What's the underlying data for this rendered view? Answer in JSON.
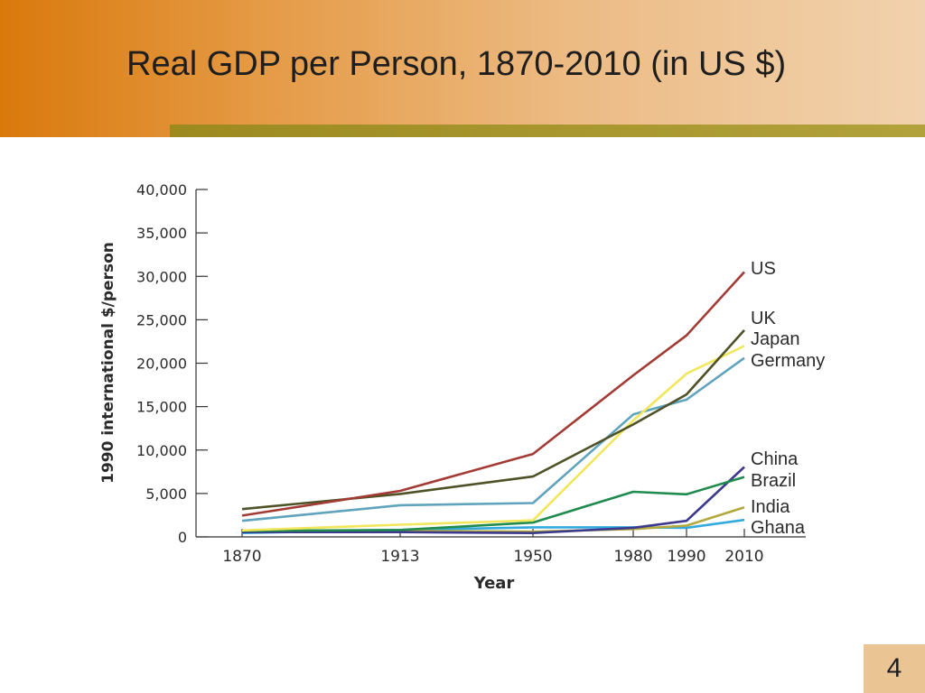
{
  "slide": {
    "title": "Real GDP per Person, 1870-2010 (in US $)",
    "page_number": "4"
  },
  "colors": {
    "header_start": "#d9790c",
    "header_end": "#f1d2ae",
    "stripe": "#9c8a1f"
  },
  "chart_data": {
    "type": "line",
    "title": "",
    "xlabel": "Year",
    "ylabel": "1990 international $/person",
    "x": [
      1870,
      1913,
      1950,
      1980,
      1990,
      2010
    ],
    "x_tick_labels": [
      "1870",
      "1913",
      "1950",
      "1980",
      "1990",
      "2010"
    ],
    "y_ticks": [
      0,
      5000,
      10000,
      15000,
      20000,
      25000,
      30000,
      35000,
      40000
    ],
    "y_tick_labels": [
      "0",
      "5,000",
      "10,000",
      "15,000",
      "20,000",
      "25,000",
      "30,000",
      "35,000",
      "40,000"
    ],
    "ylim": [
      0,
      40000
    ],
    "grid": false,
    "legend": "inline labels at line ends (right)",
    "series": [
      {
        "name": "US",
        "color": "#a33a34",
        "values": [
          2450,
          5300,
          9550,
          18600,
          23200,
          30500
        ]
      },
      {
        "name": "UK",
        "color": "#4f5227",
        "values": [
          3200,
          4950,
          6950,
          12950,
          16400,
          23800
        ]
      },
      {
        "name": "Japan",
        "color": "#f2e65a",
        "values": [
          750,
          1400,
          1900,
          13400,
          18800,
          22000
        ]
      },
      {
        "name": "Germany",
        "color": "#5fa3bd",
        "values": [
          1850,
          3650,
          3900,
          14100,
          15800,
          20600
        ]
      },
      {
        "name": "China",
        "color": "#3c3a8c",
        "values": [
          550,
          550,
          450,
          1050,
          1850,
          8050
        ]
      },
      {
        "name": "Brazil",
        "color": "#1f8b4c",
        "values": [
          700,
          800,
          1650,
          5200,
          4900,
          6900
        ]
      },
      {
        "name": "India",
        "color": "#b3a83c",
        "values": [
          550,
          700,
          600,
          900,
          1300,
          3400
        ]
      },
      {
        "name": "Ghana",
        "color": "#33aadd",
        "values": [
          450,
          800,
          1100,
          1100,
          1050,
          1950
        ]
      }
    ]
  }
}
